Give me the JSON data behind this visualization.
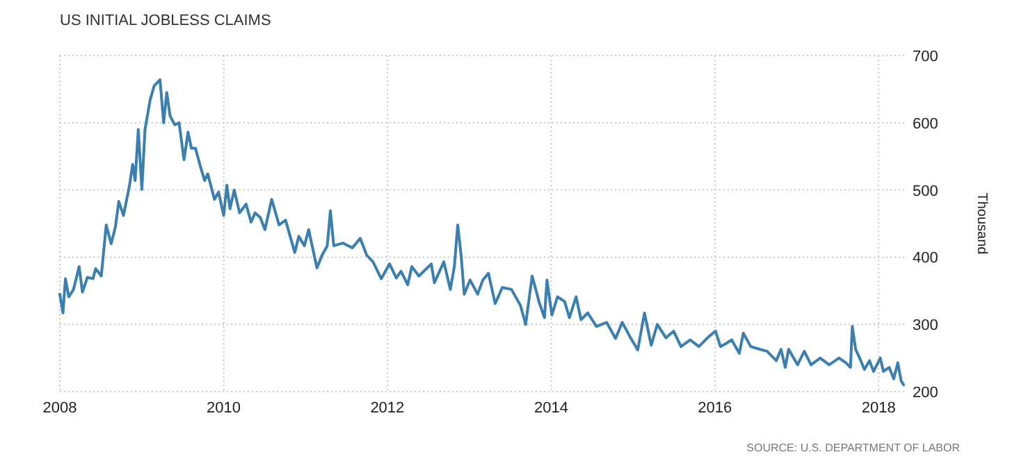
{
  "chart_data": {
    "type": "line",
    "title": "US INITIAL JOBLESS CLAIMS",
    "ylabel": "Thousand",
    "annotations": [
      "SOURCE: U.S. DEPARTMENT OF LABOR"
    ],
    "x": [
      "2008-01-01",
      "2008-01-15",
      "2008-01-26",
      "2008-02-10",
      "2008-03-02",
      "2008-03-27",
      "2008-04-11",
      "2008-05-03",
      "2008-05-28",
      "2008-06-09",
      "2008-07-04",
      "2008-07-26",
      "2008-08-17",
      "2008-09-05",
      "2008-09-20",
      "2008-10-11",
      "2008-11-07",
      "2008-11-21",
      "2008-12-02",
      "2008-12-16",
      "2009-01-01",
      "2009-01-15",
      "2009-02-07",
      "2009-02-25",
      "2009-03-23",
      "2009-04-08",
      "2009-04-22",
      "2009-05-07",
      "2009-05-28",
      "2009-06-16",
      "2009-07-08",
      "2009-07-26",
      "2009-08-10",
      "2009-08-28",
      "2009-09-20",
      "2009-10-08",
      "2009-10-22",
      "2009-11-21",
      "2009-12-09",
      "2010-01-01",
      "2010-01-15",
      "2010-01-29",
      "2010-02-17",
      "2010-03-13",
      "2010-04-11",
      "2010-05-03",
      "2010-05-21",
      "2010-06-13",
      "2010-07-04",
      "2010-08-03",
      "2010-09-05",
      "2010-10-04",
      "2010-11-14",
      "2010-12-02",
      "2010-12-27",
      "2011-01-15",
      "2011-02-21",
      "2011-03-16",
      "2011-04-08",
      "2011-04-22",
      "2011-05-07",
      "2011-06-16",
      "2011-07-29",
      "2011-09-02",
      "2011-10-01",
      "2011-10-29",
      "2011-12-05",
      "2012-01-11",
      "2012-02-10",
      "2012-03-02",
      "2012-04-01",
      "2012-04-19",
      "2012-05-21",
      "2012-07-15",
      "2012-07-29",
      "2012-09-09",
      "2012-10-08",
      "2012-10-26",
      "2012-11-10",
      "2012-11-25",
      "2012-12-09",
      "2013-01-04",
      "2013-02-07",
      "2013-03-02",
      "2013-03-27",
      "2013-04-26",
      "2013-05-28",
      "2013-07-08",
      "2013-08-17",
      "2013-09-09",
      "2013-10-08",
      "2013-11-10",
      "2013-12-02",
      "2013-12-13",
      "2014-01-04",
      "2014-01-29",
      "2014-03-02",
      "2014-03-23",
      "2014-04-22",
      "2014-05-14",
      "2014-06-13",
      "2014-07-22",
      "2014-09-05",
      "2014-10-15",
      "2014-11-14",
      "2014-12-16",
      "2015-01-22",
      "2015-02-21",
      "2015-03-23",
      "2015-04-19",
      "2015-05-28",
      "2015-07-01",
      "2015-08-03",
      "2015-09-13",
      "2015-10-22",
      "2015-12-02",
      "2016-01-04",
      "2016-01-26",
      "2016-02-17",
      "2016-03-16",
      "2016-04-19",
      "2016-05-07",
      "2016-06-09",
      "2016-07-19",
      "2016-08-21",
      "2016-10-01",
      "2016-10-22",
      "2016-11-10",
      "2016-11-25",
      "2017-01-04",
      "2017-02-03",
      "2017-03-05",
      "2017-04-15",
      "2017-05-25",
      "2017-07-08",
      "2017-08-07",
      "2017-08-28",
      "2017-09-05",
      "2017-09-20",
      "2017-10-08",
      "2017-10-29",
      "2017-11-21",
      "2017-12-09",
      "2018-01-08",
      "2018-01-22",
      "2018-02-17",
      "2018-03-09",
      "2018-03-27",
      "2018-04-11",
      "2018-04-22"
    ],
    "series": [
      {
        "color": "#3a7fb0",
        "values": [
          345,
          317,
          368,
          341,
          352,
          386,
          348,
          370,
          368,
          383,
          372,
          448,
          420,
          445,
          483,
          462,
          507,
          538,
          514,
          590,
          501,
          590,
          634,
          655,
          664,
          600,
          645,
          610,
          597,
          600,
          545,
          586,
          562,
          562,
          534,
          514,
          524,
          486,
          497,
          462,
          507,
          472,
          500,
          466,
          479,
          452,
          466,
          459,
          441,
          486,
          448,
          455,
          407,
          431,
          417,
          441,
          384,
          403,
          417,
          469,
          417,
          421,
          414,
          428,
          403,
          393,
          368,
          390,
          369,
          379,
          359,
          386,
          372,
          390,
          362,
          393,
          352,
          386,
          448,
          403,
          345,
          366,
          345,
          366,
          376,
          331,
          355,
          352,
          328,
          300,
          372,
          331,
          310,
          366,
          314,
          341,
          334,
          310,
          341,
          307,
          317,
          297,
          303,
          279,
          303,
          283,
          262,
          317,
          269,
          300,
          280,
          290,
          267,
          277,
          267,
          281,
          290,
          267,
          271,
          277,
          257,
          287,
          267,
          263,
          260,
          246,
          263,
          236,
          263,
          240,
          260,
          240,
          250,
          240,
          250,
          243,
          236,
          297,
          263,
          250,
          233,
          246,
          230,
          250,
          230,
          236,
          219,
          243,
          216,
          210
        ]
      }
    ],
    "xlim": [
      "2008-01-01",
      "2018-05-01"
    ],
    "xticks": [
      "2008",
      "2010",
      "2012",
      "2014",
      "2016",
      "2018"
    ],
    "ylim": [
      200,
      700
    ],
    "yticks": [
      200,
      300,
      400,
      500,
      600,
      700
    ],
    "grid": true,
    "line_style": "solid",
    "marker": "none"
  }
}
